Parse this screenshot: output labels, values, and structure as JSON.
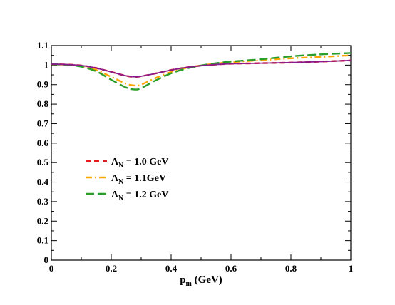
{
  "chart_data": {
    "type": "line",
    "xlabel_main": "p",
    "xlabel_sub": "m",
    "xlabel_unit": " (GeV)",
    "ylabel": "",
    "xlim": [
      0,
      1
    ],
    "ylim": [
      0,
      1.1
    ],
    "x_ticks": [
      "0",
      "0.2",
      "0.4",
      "0.6",
      "0.8",
      "1"
    ],
    "y_ticks": [
      "0",
      "0.1",
      "0.2",
      "0.3",
      "0.4",
      "0.5",
      "0.6",
      "0.7",
      "0.8",
      "0.9",
      "1",
      "1.1"
    ],
    "x": [
      0.0,
      0.05,
      0.1,
      0.15,
      0.2,
      0.25,
      0.28,
      0.3,
      0.35,
      0.4,
      0.45,
      0.5,
      0.55,
      0.6,
      0.7,
      0.8,
      0.9,
      1.0
    ],
    "legend_position": "center-left",
    "series": [
      {
        "name_symbol": "Λ",
        "name_sub": "N",
        "name_rest": " = 1.0 GeV",
        "color": "#e41a1c",
        "dash": "dashed",
        "values": [
          1.005,
          1.003,
          0.998,
          0.985,
          0.965,
          0.945,
          0.94,
          0.943,
          0.958,
          0.975,
          0.988,
          0.997,
          1.003,
          1.007,
          1.01,
          1.013,
          1.018,
          1.024
        ]
      },
      {
        "name_symbol": "Λ",
        "name_sub": "N",
        "name_rest": " = 1.1GeV",
        "color": "#ffa500",
        "dash": "dashdot",
        "values": [
          1.005,
          1.002,
          0.995,
          0.975,
          0.94,
          0.905,
          0.895,
          0.9,
          0.935,
          0.965,
          0.985,
          0.998,
          1.008,
          1.015,
          1.025,
          1.035,
          1.042,
          1.05
        ]
      },
      {
        "name_symbol": "Λ",
        "name_sub": "N",
        "name_rest": " = 1.2 GeV",
        "color": "#2a9d2a",
        "dash": "longdash",
        "values": [
          1.005,
          1.001,
          0.992,
          0.968,
          0.925,
          0.885,
          0.875,
          0.882,
          0.923,
          0.958,
          0.982,
          0.998,
          1.01,
          1.018,
          1.03,
          1.045,
          1.055,
          1.062
        ]
      },
      {
        "name_symbol": "",
        "name_sub": "",
        "name_rest": "",
        "color": "#8b1a8b",
        "dash": "solid",
        "values": [
          1.005,
          1.003,
          0.998,
          0.985,
          0.965,
          0.945,
          0.94,
          0.943,
          0.958,
          0.975,
          0.988,
          0.997,
          1.003,
          1.007,
          1.01,
          1.013,
          1.018,
          1.024
        ]
      }
    ]
  }
}
